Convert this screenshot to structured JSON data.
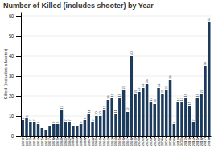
{
  "chart_data": {
    "type": "bar",
    "title": "Number of Killed (includes shooter) by Year",
    "ylabel": "Killed (includes shooter)",
    "categories": [
      "1970",
      "1971",
      "1972",
      "1973",
      "1974",
      "1975",
      "1976",
      "1977",
      "1978",
      "1979",
      "1980",
      "1981",
      "1982",
      "1983",
      "1984",
      "1985",
      "1986",
      "1987",
      "1988",
      "1989",
      "1990",
      "1991",
      "1992",
      "1993",
      "1994",
      "1995",
      "1996",
      "1997",
      "1998",
      "1999",
      "2000",
      "2001",
      "2002",
      "2003",
      "2004",
      "2005",
      "2006",
      "2007",
      "2008",
      "2009",
      "2010",
      "2011",
      "2012",
      "2013",
      "2014",
      "2015",
      "2016",
      "2017",
      "2018"
    ],
    "values": [
      8,
      9,
      7,
      7,
      6,
      4,
      3,
      5,
      6,
      6,
      13,
      7,
      7,
      5,
      5,
      6,
      8,
      11,
      7,
      10,
      10,
      13,
      18,
      19,
      11,
      19,
      23,
      12,
      40,
      21,
      22,
      24,
      26,
      17,
      16,
      24,
      21,
      23,
      28,
      6,
      17,
      17,
      19,
      15,
      7,
      19,
      21,
      35,
      57
    ],
    "data_labels": true,
    "value_labels": [
      "8",
      "9",
      "7",
      "7",
      "6",
      null,
      null,
      null,
      "6",
      "6",
      "13",
      "7",
      "7",
      null,
      null,
      "6",
      "8",
      "11",
      "7",
      "10",
      "10",
      "13",
      "18",
      "19",
      "11",
      "19",
      "23",
      "12",
      "40",
      "21",
      "22",
      "24",
      "26",
      "17",
      "16",
      "24",
      "21",
      "23",
      "28",
      "6",
      "17",
      "17",
      "19",
      "15",
      "7",
      "19",
      "21",
      "35",
      "57"
    ],
    "color": "#1b3a5c",
    "ylim": [
      0,
      62
    ],
    "yticks": [
      0,
      10,
      20,
      30,
      40,
      50,
      60
    ],
    "grid": true
  }
}
